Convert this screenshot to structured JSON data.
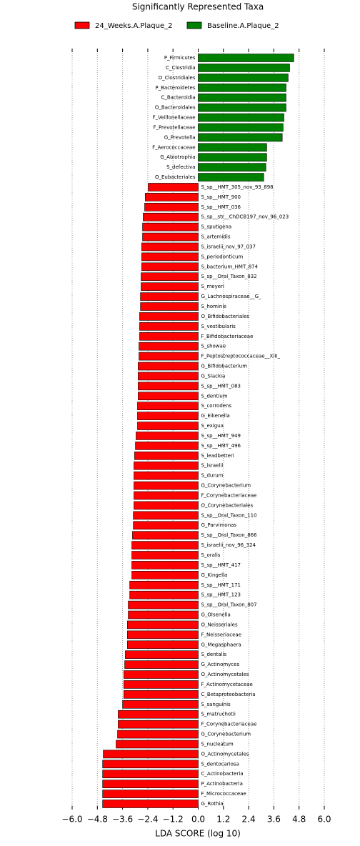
{
  "chart_data": {
    "type": "barh",
    "title": "Significantly Represented Taxa",
    "xlabel": "LDA SCORE (log 10)",
    "categories": [
      "P_Firmicutes",
      "C_Clostridia",
      "O_Clostridiales",
      "P_Bacteroidetes",
      "C_Bacteroidia",
      "O_Bacteroidales",
      "F_Veillonellaceae",
      "F_Prevotellaceae",
      "G_Prevotella",
      "F_Aerococcaceae",
      "G_Abiotrophia",
      "S_defectiva",
      "O_Eubacteriales",
      "S_sp__HMT_305_nov_93_898",
      "S_sp__HMT_900",
      "S_sp__HMT_036",
      "S_sp__str__ChDCB197_nov_96_023",
      "S_sputigena",
      "S_artemidis",
      "S_israelii_nov_97_037",
      "S_periodonticum",
      "S_bacterium_HMT_874",
      "S_sp__Oral_Taxon_832",
      "S_meyeri",
      "G_Lachnospiraceae__G_",
      "S_hominis",
      "O_Bifidobacteriales",
      "S_vestibularis",
      "F_Bifidobacteriaceae",
      "S_showae",
      "F_Peptostreptococcaceae__XIII_",
      "G_Bifidobacterium",
      "G_Slackia",
      "S_sp__HMT_083",
      "S_dentium",
      "S_corrodens",
      "G_Eikenella",
      "S_exigua",
      "S_sp__HMT_949",
      "S_sp__HMT_496",
      "S_leadbetteri",
      "S_israelii",
      "S_durum",
      "G_Corynebacterium",
      "F_Corynebacteriaceae",
      "O_Corynebacteriales",
      "S_sp__Oral_Taxon_110",
      "G_Parvimonas",
      "S_sp__Oral_Taxon_866",
      "S_israelii_nov_96_324",
      "S_oralis",
      "S_sp__HMT_417",
      "G_Kingella",
      "S_sp__HMT_171",
      "S_sp__HMT_123",
      "S_sp__Oral_Taxon_807",
      "G_Olsenella",
      "O_Neisseriales",
      "F_Neisseriaceae",
      "G_Megasphaera",
      "S_dentalis",
      "G_Actinomyces",
      "O_Actinomycetales",
      "F_Actinomycetaceae",
      "C_Betaproteobacteria",
      "S_sanguinis",
      "S_matruchotii",
      "F_Corynebacteriaceae",
      "G_Corynebacterium",
      "S_nucleatum",
      "O_Actinomycetales",
      "S_dentocariosa",
      "C_Actinobacteria",
      "P_Actinobacteria",
      "F_Micrococcaceae",
      "G_Rothia"
    ],
    "series": [
      {
        "name": "24_Weeks.A.Plaque_2",
        "color": "#ff0000",
        "values": [
          null,
          null,
          null,
          null,
          null,
          null,
          null,
          null,
          null,
          null,
          null,
          null,
          null,
          -2.38,
          -2.52,
          -2.55,
          -2.62,
          -2.65,
          -2.65,
          -2.69,
          -2.69,
          -2.69,
          -2.72,
          -2.72,
          -2.75,
          -2.75,
          -2.79,
          -2.79,
          -2.79,
          -2.82,
          -2.82,
          -2.86,
          -2.86,
          -2.86,
          -2.86,
          -2.89,
          -2.89,
          -2.89,
          -2.96,
          -2.99,
          -3.03,
          -3.06,
          -3.06,
          -3.06,
          -3.06,
          -3.06,
          -3.09,
          -3.09,
          -3.13,
          -3.16,
          -3.16,
          -3.16,
          -3.16,
          -3.26,
          -3.26,
          -3.33,
          -3.33,
          -3.37,
          -3.37,
          -3.37,
          -3.47,
          -3.5,
          -3.54,
          -3.54,
          -3.54,
          -3.6,
          -3.81,
          -3.81,
          -3.84,
          -3.91,
          -4.52,
          -4.55,
          -4.55,
          -4.55,
          -4.55,
          -4.55
        ]
      },
      {
        "name": "Baseline.A.Plaque_2",
        "color": "#008000",
        "values": [
          4.55,
          4.35,
          4.28,
          4.18,
          4.18,
          4.18,
          4.08,
          4.04,
          4.0,
          3.26,
          3.26,
          3.22,
          3.12,
          null,
          null,
          null,
          null,
          null,
          null,
          null,
          null,
          null,
          null,
          null,
          null,
          null,
          null,
          null,
          null,
          null,
          null,
          null,
          null,
          null,
          null,
          null,
          null,
          null,
          null,
          null,
          null,
          null,
          null,
          null,
          null,
          null,
          null,
          null,
          null,
          null,
          null,
          null,
          null,
          null,
          null,
          null,
          null,
          null,
          null,
          null,
          null,
          null,
          null,
          null,
          null,
          null,
          null,
          null,
          null,
          null,
          null,
          null,
          null,
          null,
          null,
          null
        ]
      }
    ],
    "xlim": [
      -6.0,
      6.0
    ],
    "xticks": [
      {
        "value": -6.0,
        "label": "−6.0"
      },
      {
        "value": -4.8,
        "label": "−4.8"
      },
      {
        "value": -3.6,
        "label": "−3.6"
      },
      {
        "value": -2.4,
        "label": "−2.4"
      },
      {
        "value": -1.2,
        "label": "−1.2"
      },
      {
        "value": 0,
        "label": "0.0"
      },
      1.2,
      2.4,
      3.6,
      4.8,
      {
        "value": 6.0,
        "label": "6.0"
      }
    ],
    "grid": true
  }
}
